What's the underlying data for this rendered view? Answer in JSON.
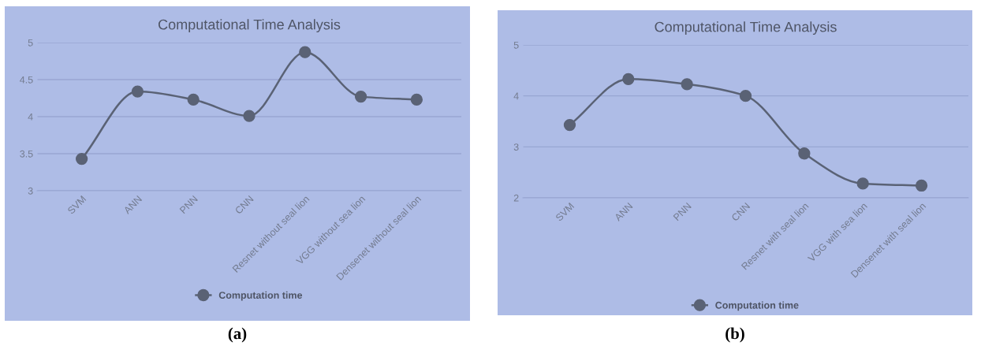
{
  "chart_data": [
    {
      "type": "line",
      "title": "Computational Time Analysis",
      "categories": [
        "SVM",
        "ANN",
        "PNN",
        "CNN",
        "Resnet without seal lion",
        "VGG without sea lion",
        "Densenet without seal lion"
      ],
      "series": [
        {
          "name": "Computation time",
          "color": "#5a6275",
          "values": [
            3.43,
            4.34,
            4.23,
            4.01,
            4.87,
            4.27,
            4.23
          ]
        }
      ],
      "ylim": [
        3,
        5
      ],
      "yticks": [
        3,
        3.5,
        4,
        4.5,
        5
      ],
      "grid": "y",
      "legend": "bottom",
      "marker": "circle",
      "annotations": [
        "(a)"
      ]
    },
    {
      "type": "line",
      "title": "Computational Time Analysis",
      "categories": [
        "SVM",
        "ANN",
        "PNN",
        "CNN",
        "Resnet with seal lion",
        "VGG with sea lion",
        "Densenet with seal lion"
      ],
      "series": [
        {
          "name": "Computation time",
          "color": "#5a6275",
          "values": [
            3.43,
            4.33,
            4.23,
            4.0,
            2.87,
            2.28,
            2.24
          ]
        }
      ],
      "ylim": [
        2,
        5
      ],
      "yticks": [
        2,
        3,
        4,
        5
      ],
      "grid": "y",
      "legend": "bottom",
      "marker": "circle",
      "annotations": [
        "(b)"
      ]
    }
  ]
}
